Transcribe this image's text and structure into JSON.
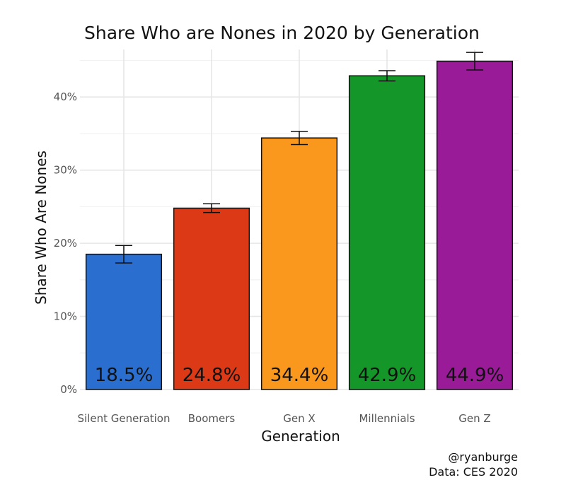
{
  "chart_data": {
    "type": "bar",
    "title": "Share Who are Nones in 2020 by Generation",
    "xlabel": "Generation",
    "ylabel": "Share Who Are Nones",
    "categories": [
      "Silent Generation",
      "Boomers",
      "Gen X",
      "Millennials",
      "Gen Z"
    ],
    "values": [
      18.5,
      24.8,
      34.4,
      42.9,
      44.9
    ],
    "value_labels": [
      "18.5%",
      "24.8%",
      "34.4%",
      "42.9%",
      "44.9%"
    ],
    "error_bars": [
      {
        "low": 17.3,
        "high": 19.7
      },
      {
        "low": 24.2,
        "high": 25.4
      },
      {
        "low": 33.5,
        "high": 35.3
      },
      {
        "low": 42.2,
        "high": 43.6
      },
      {
        "low": 43.7,
        "high": 46.1
      }
    ],
    "colors": [
      "#2A6FD0",
      "#DC3A16",
      "#FA981D",
      "#159629",
      "#991B98"
    ],
    "ylim": [
      0,
      46.5
    ],
    "yticks": [
      0,
      10,
      20,
      30,
      40
    ],
    "ytick_labels": [
      "0%",
      "10%",
      "20%",
      "30%",
      "40%"
    ],
    "grid": true,
    "legend": "none"
  },
  "caption": {
    "line1": "@ryanburge",
    "line2": "Data: CES 2020"
  }
}
